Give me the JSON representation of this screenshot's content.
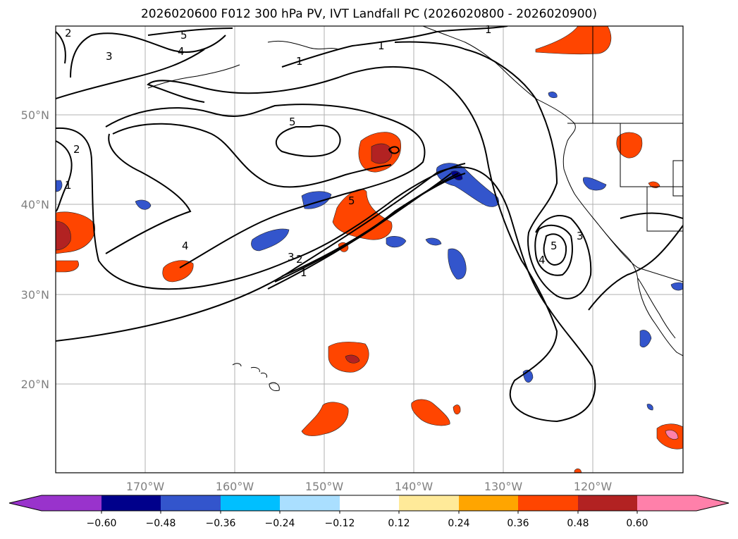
{
  "title": "2026020600 F012 300 hPa PV, IVT Landfall PC (2026020800 - 2026020900)",
  "latitude_labels": [
    "50°N",
    "40°N",
    "30°N",
    "20°N"
  ],
  "longitude_labels": [
    "170°W",
    "160°W",
    "150°W",
    "140°W",
    "130°W",
    "120°W"
  ],
  "contour_labels": [
    "1",
    "1",
    "1",
    "1",
    "1",
    "2",
    "2",
    "2",
    "3",
    "3",
    "3",
    "4",
    "4",
    "4",
    "5",
    "5",
    "5",
    "5"
  ],
  "colorbar": {
    "ticks": [
      "−0.60",
      "−0.48",
      "−0.36",
      "−0.24",
      "−0.12",
      "0.12",
      "0.24",
      "0.36",
      "0.48",
      "0.60"
    ],
    "colors": [
      "#9933cc",
      "#00008b",
      "#3355cc",
      "#00bfff",
      "#aadfff",
      "#ffffff",
      "#ffea99",
      "#ffa500",
      "#ff4500",
      "#b22222",
      "#ff80aa"
    ]
  }
}
